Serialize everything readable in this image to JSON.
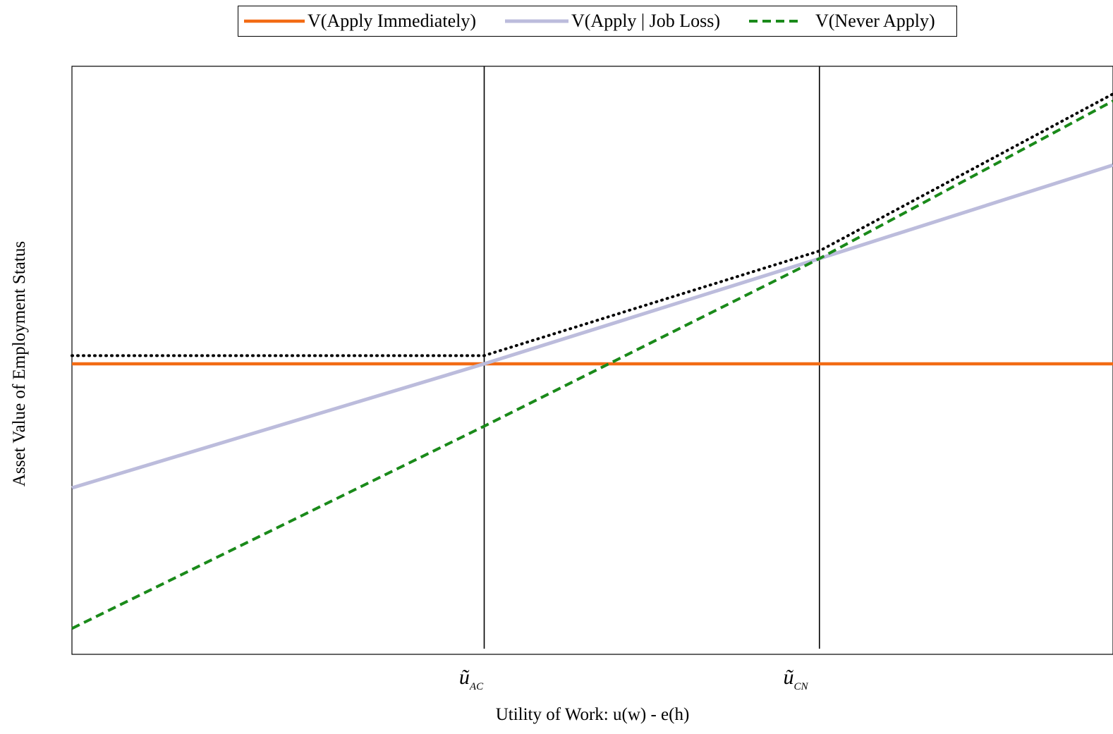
{
  "chart_data": {
    "type": "line",
    "title": "",
    "xlabel": "Utility of Work: u(w) - e(h)",
    "ylabel": "Asset Value of Employment Status",
    "xlim": [
      0,
      100
    ],
    "ylim": [
      0,
      100
    ],
    "grid": false,
    "legend_position": "top",
    "x_ticks": [
      {
        "x": 39.6,
        "label": "ũ",
        "sub": "AC"
      },
      {
        "x": 71.8,
        "label": "ũ",
        "sub": "CN"
      }
    ],
    "vlines": [
      39.6,
      71.8
    ],
    "series": [
      {
        "name": "V(Apply Immediately)",
        "color": "#f26b14",
        "style": "solid",
        "x": [
          0,
          100
        ],
        "y": [
          49.4,
          49.4
        ]
      },
      {
        "name": "V(Apply | Job Loss)",
        "color": "#bcbcdc",
        "style": "solid",
        "x": [
          0,
          39.6,
          71.8,
          100
        ],
        "y": [
          28.3,
          49.4,
          67.3,
          83.2
        ]
      },
      {
        "name": "V(Never Apply)",
        "color": "#1a8a1a",
        "style": "dashed",
        "x": [
          0,
          39.6,
          71.8,
          100
        ],
        "y": [
          4.4,
          38.8,
          67.3,
          94.1
        ]
      },
      {
        "name": "",
        "color": "#000000",
        "style": "dotted",
        "x": [
          0,
          39.6,
          71.8,
          100
        ],
        "y": [
          50.8,
          50.8,
          68.6,
          95.3
        ]
      }
    ]
  }
}
